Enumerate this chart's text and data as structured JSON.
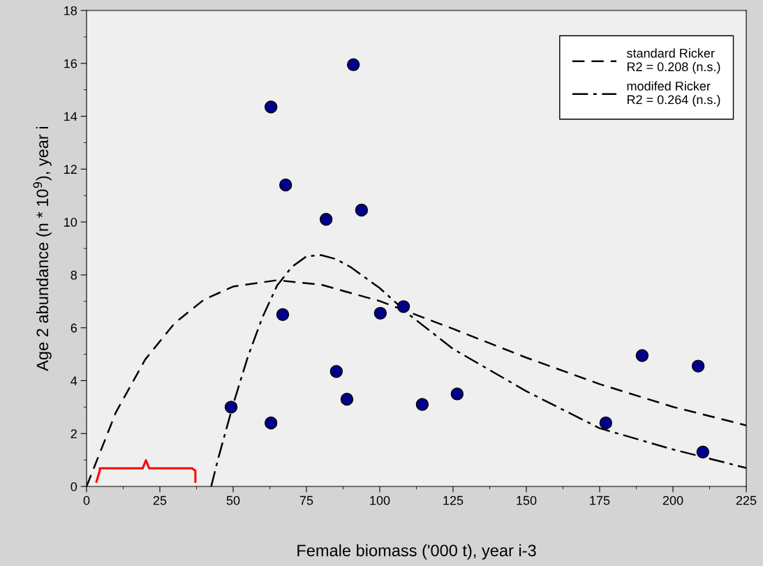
{
  "chart_data": {
    "type": "scatter",
    "xlabel": "Female biomass ('000 t), year i-3",
    "ylabel": "Age 2 abundance (n * 10$^{9}$), year i",
    "xlim": [
      0,
      225
    ],
    "xticks": [
      0,
      25,
      50,
      75,
      100,
      125,
      150,
      175,
      200,
      225
    ],
    "ylim": [
      0,
      18
    ],
    "yticks": [
      0,
      2,
      4,
      6,
      8,
      10,
      12,
      14,
      16,
      18
    ],
    "grid": false,
    "legend": "top right",
    "series": [
      {
        "color": "#00008b",
        "marker": "circle",
        "x": [
          49.3,
          62.9,
          62.9,
          67.9,
          66.9,
          81.7,
          85.2,
          88.8,
          91,
          93.8,
          100.2,
          108.1,
          114.5,
          126.4,
          177.1,
          189.5,
          208.6,
          210.2
        ],
        "values": [
          3.0,
          2.4,
          14.35,
          11.4,
          6.5,
          10.1,
          4.35,
          3.3,
          15.95,
          10.45,
          6.55,
          6.8,
          3.1,
          3.5,
          2.4,
          4.95,
          4.55,
          1.3
        ]
      },
      {
        "type": "line",
        "name": "standard Ricker\nR2 = 0.208 (n.s.)",
        "color": "#000000",
        "line_style": "dashed",
        "x": [
          0,
          10,
          20,
          30,
          40,
          50,
          65,
          80,
          100,
          125,
          150,
          175,
          200,
          225
        ],
        "values": [
          0,
          2.8,
          4.8,
          6.17,
          7.06,
          7.56,
          7.8,
          7.63,
          7.01,
          5.96,
          4.87,
          3.87,
          3.01,
          2.31
        ]
      },
      {
        "type": "line",
        "name": "modifed Ricker\nR2 = 0.264 (n.s.)",
        "color": "#000000",
        "line_style": "dashdot",
        "x": [
          42.5,
          45,
          50,
          55,
          60,
          65,
          70,
          75,
          80,
          85,
          90,
          100,
          110,
          125,
          150,
          175,
          200,
          225
        ],
        "values": [
          0,
          1.1,
          3.1,
          4.9,
          6.4,
          7.6,
          8.3,
          8.7,
          8.75,
          8.6,
          8.3,
          7.5,
          6.5,
          5.2,
          3.6,
          2.2,
          1.4,
          0.7
        ]
      }
    ]
  }
}
